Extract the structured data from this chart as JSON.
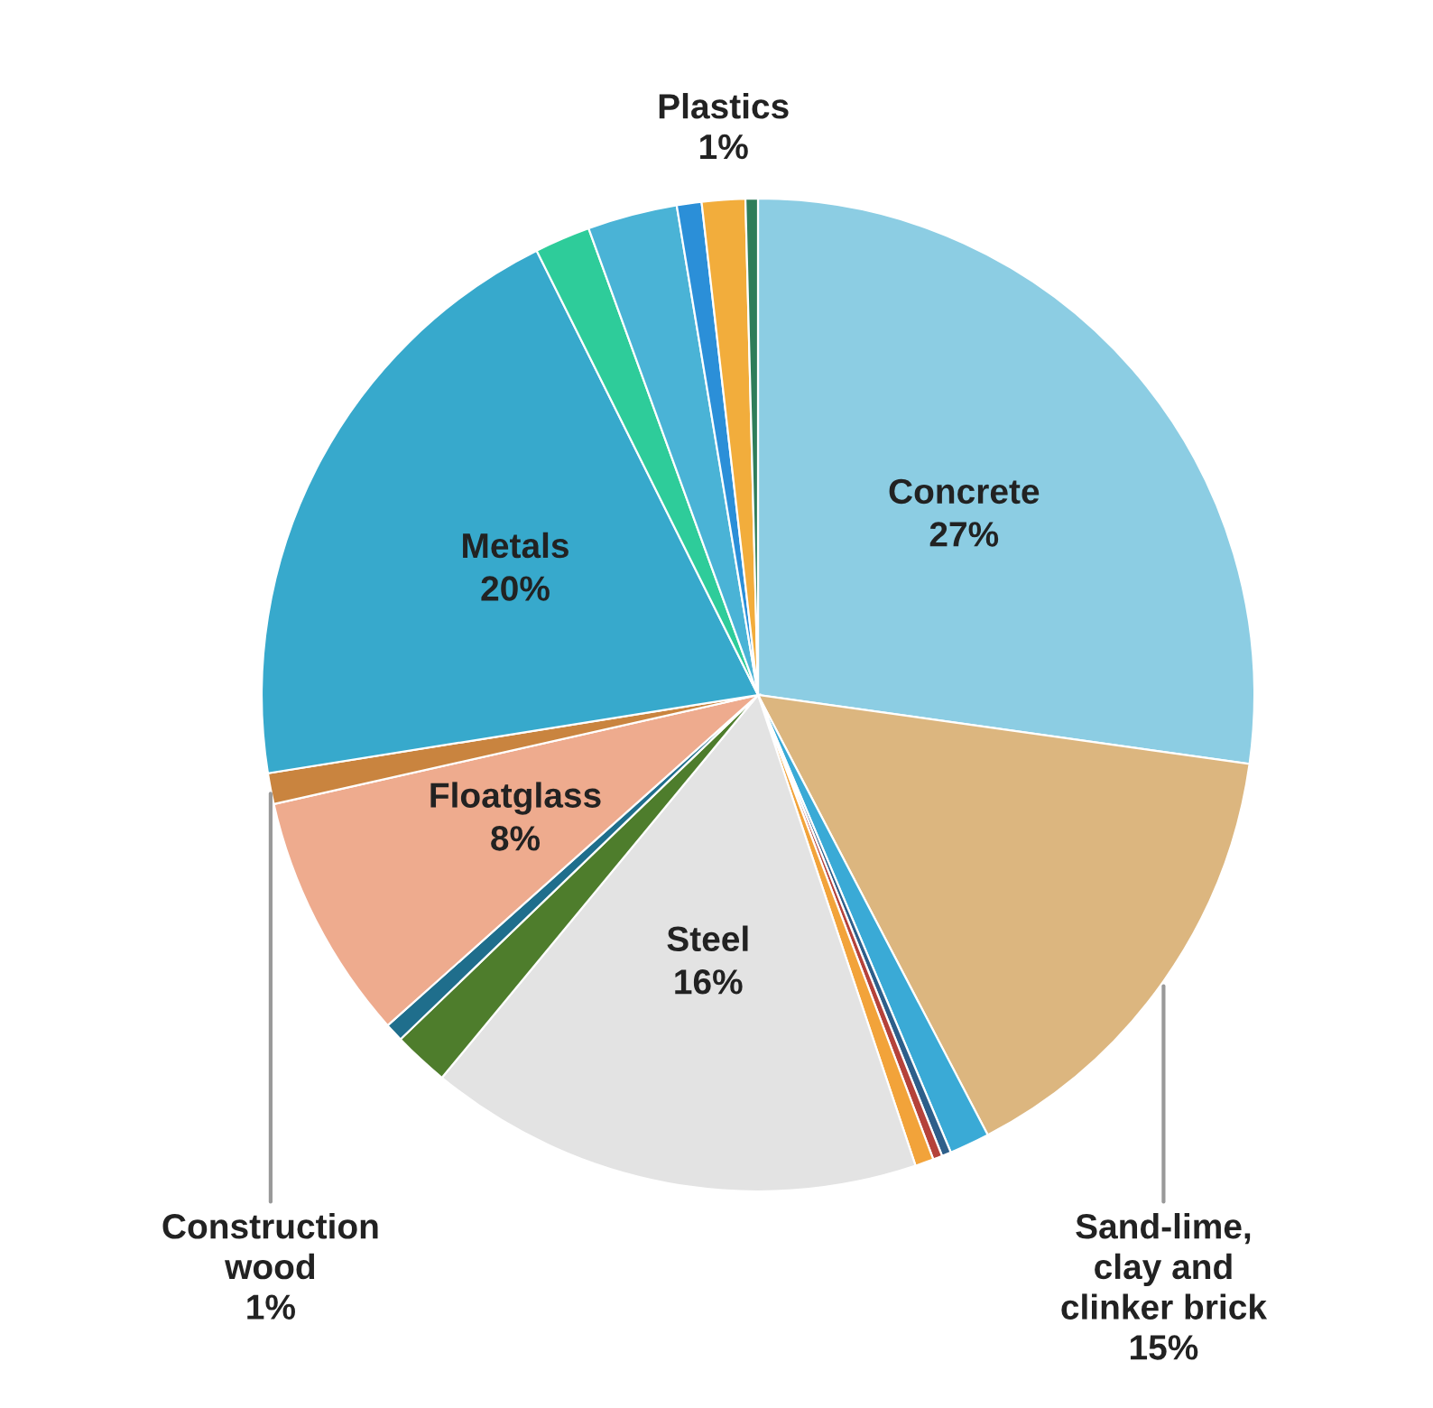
{
  "chart_data": {
    "type": "pie",
    "categories": [
      "Concrete",
      "Sand-lime, clay and clinker brick",
      null,
      null,
      null,
      null,
      "Steel",
      null,
      null,
      "Floatglass",
      "Construction wood",
      "Metals",
      null,
      null,
      null,
      "Plastics",
      null
    ],
    "values": [
      27,
      15,
      1.3,
      0.3,
      0.3,
      0.6,
      16,
      1.8,
      0.6,
      8,
      1,
      20,
      1.8,
      2.9,
      0.8,
      1.4,
      0.4
    ],
    "colors": [
      "#8ccde3",
      "#dcb67f",
      "#3aaad6",
      "#2e5f8a",
      "#b5423a",
      "#f2a33a",
      "#e3e3e3",
      "#4e7d2c",
      "#1f6e8c",
      "#eeab8e",
      "#c9843f",
      "#37a9cc",
      "#2ecc9a",
      "#4ab3d6",
      "#2b8fd8",
      "#f2ad3c",
      "#2e7d5a"
    ],
    "value_labels": [
      "27%",
      "15%",
      null,
      null,
      null,
      null,
      "16%",
      null,
      null,
      "8%",
      "1%",
      "20%",
      null,
      null,
      null,
      "1%",
      null
    ]
  }
}
